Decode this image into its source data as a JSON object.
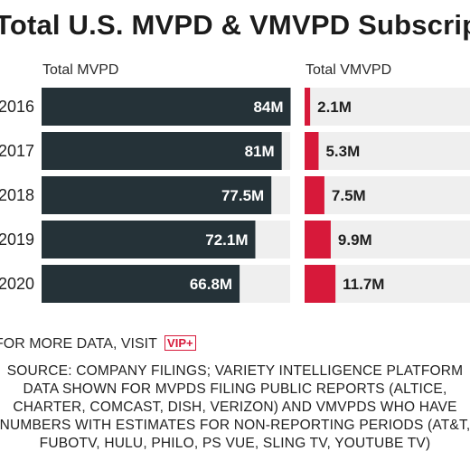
{
  "title": "Total U.S. MVPD & VMVPD Subscriptions",
  "more_data": {
    "text": "FOR MORE DATA, VISIT",
    "badge": "VIP+"
  },
  "source_lines": [
    "SOURCE: COMPANY FILINGS; VARIETY INTELLIGENCE PLATFORM",
    "DATA SHOWN FOR MVPDS FILING PUBLIC REPORTS (ALTICE,",
    "CHARTER, COMCAST, DISH, VERIZON) AND VMVPDS WHO HAVE",
    "NUMBERS WITH ESTIMATES FOR NON-REPORTING PERIODS (AT&T,",
    "FUBOTV, HULU, PHILO, PS VUE, SLING TV, YOUTUBE TV)"
  ],
  "colors": {
    "mvpd": "#253238",
    "vmvpd": "#d7193a",
    "track": "#efefef"
  },
  "chart_data": {
    "type": "bar",
    "orientation": "horizontal",
    "categories": [
      "2016",
      "2017",
      "2018",
      "2019",
      "2020"
    ],
    "series": [
      {
        "name": "Total MVPD",
        "values": [
          84,
          81,
          77.5,
          72.1,
          66.8
        ],
        "labels": [
          "84M",
          "81M",
          "77.5M",
          "72.1M",
          "66.8M"
        ]
      },
      {
        "name": "Total VMVPD",
        "values": [
          2.1,
          5.3,
          7.5,
          9.9,
          11.7
        ],
        "labels": [
          "2.1M",
          "5.3M",
          "7.5M",
          "9.9M",
          "11.7M"
        ]
      }
    ],
    "grid": false
  }
}
